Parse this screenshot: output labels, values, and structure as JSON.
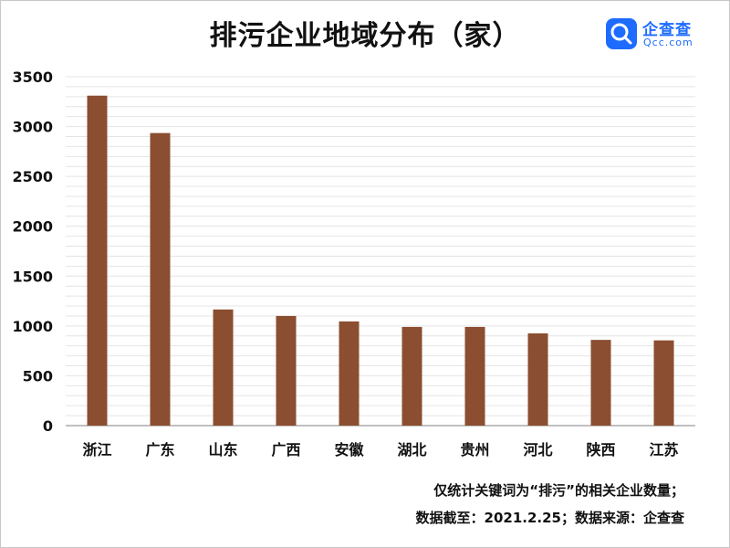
{
  "chart_data": {
    "type": "bar",
    "title": "排污企业地域分布（家）",
    "categories": [
      "浙江",
      "广东",
      "山东",
      "广西",
      "安徽",
      "湖北",
      "贵州",
      "河北",
      "陕西",
      "江苏"
    ],
    "values": [
      3310,
      2935,
      1165,
      1100,
      1045,
      990,
      990,
      925,
      860,
      855
    ],
    "yticks": [
      "0",
      "500",
      "1000",
      "1500",
      "2000",
      "2500",
      "3000",
      "3500"
    ],
    "ylim": [
      0,
      3500
    ],
    "bar_color": "#8b4e30",
    "grid": true,
    "legend": "none"
  },
  "logo": {
    "name": "企查查",
    "sub": "Qcc.com",
    "color": "#1e6cff"
  },
  "footnote": {
    "line1": "仅统计关键词为“排污”的相关企业数量；",
    "line2": "数据截至：2021.2.25；数据来源：企查查"
  }
}
